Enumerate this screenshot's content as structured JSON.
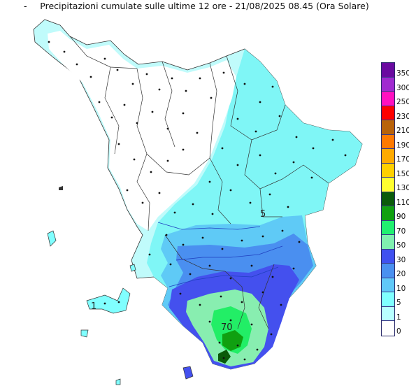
{
  "header": {
    "title": "Precipitazioni cumulate sulle ultime 12 ore - 21/08/2025 08.45 (Ora Solare)",
    "corner_mark": "-"
  },
  "legend": {
    "labels": [
      "350",
      "300",
      "250",
      "230",
      "210",
      "190",
      "170",
      "150",
      "130",
      "110",
      "90",
      "70",
      "50",
      "30",
      "20",
      "10",
      "5",
      "1",
      "0"
    ],
    "colors": [
      "#6a0aa0",
      "#a02ad0",
      "#ff10c0",
      "#ff0000",
      "#b8620a",
      "#ff7a00",
      "#ffaa00",
      "#ffd000",
      "#ffff30",
      "#0a5a0a",
      "#10a010",
      "#20f070",
      "#80f0b0",
      "#4050f0",
      "#4a90f0",
      "#60c8f8",
      "#80ffff",
      "#b8ffff",
      "#ffffff"
    ]
  },
  "map": {
    "isoline_labels": [
      "5",
      "1",
      "70"
    ],
    "colors": {
      "dry": "#ffffff",
      "c1": "#c0fbfb",
      "c5": "#7ff6f6",
      "c10": "#5fcaf6",
      "c20": "#4a8ff0",
      "c30": "#4450ee",
      "c50": "#88eeb0",
      "c70": "#22ee66",
      "c90": "#10a010",
      "c110": "#0a5a0a"
    }
  }
}
